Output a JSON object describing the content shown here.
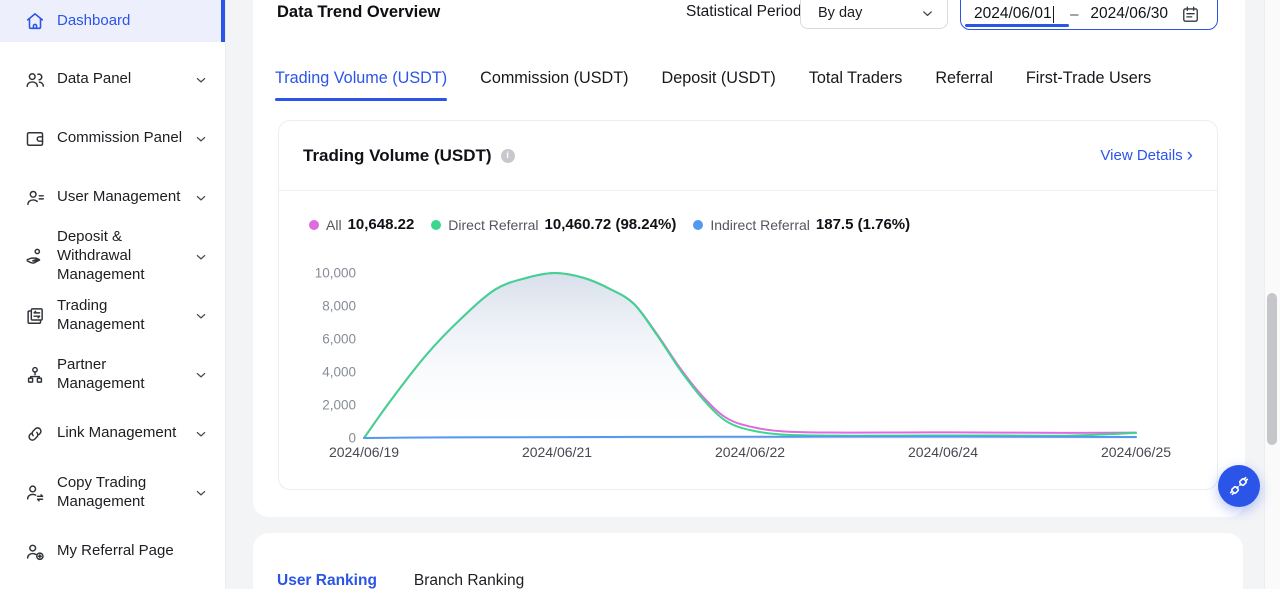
{
  "colors": {
    "accent": "#2B54E8",
    "page_bg": "#f3f4f6",
    "legend_all": "#DF6BDF",
    "legend_direct": "#3CD68E",
    "legend_indirect": "#5598F0"
  },
  "sidebar": {
    "items": [
      {
        "label": "Dashboard",
        "icon": "home-icon",
        "active": true
      },
      {
        "label": "Data Panel",
        "icon": "data-panel-icon"
      },
      {
        "label": "Commission Panel",
        "icon": "commission-panel-icon"
      },
      {
        "label": "User Management",
        "icon": "user-management-icon"
      },
      {
        "label": "Deposit & Withdrawal Management",
        "icon": "deposit-withdrawal-icon"
      },
      {
        "label": "Trading Management",
        "icon": "trading-management-icon"
      },
      {
        "label": "Partner Management",
        "icon": "partner-management-icon"
      },
      {
        "label": "Link Management",
        "icon": "link-icon"
      },
      {
        "label": "Copy Trading Management",
        "icon": "copy-trading-icon"
      },
      {
        "label": "My Referral Page",
        "icon": "referral-page-icon"
      }
    ]
  },
  "header": {
    "title": "Data Trend Overview",
    "statistical_period_label": "Statistical Period",
    "period_select_value": "By day",
    "period_select_icon": "chevron-down-icon",
    "date_start": "2024/06/01",
    "date_separator": "–",
    "date_end": "2024/06/30",
    "calendar_icon": "calendar-icon"
  },
  "tabs": [
    {
      "label": "Trading Volume (USDT)",
      "active": true
    },
    {
      "label": "Commission (USDT)",
      "active": false
    },
    {
      "label": "Deposit (USDT)",
      "active": false
    },
    {
      "label": "Total Traders",
      "active": false
    },
    {
      "label": "Referral",
      "active": false
    },
    {
      "label": "First-Trade Users",
      "active": false
    }
  ],
  "chart_card": {
    "title": "Trading Volume (USDT)",
    "info_icon": "info-icon",
    "info_glyph": "i",
    "view_details_label": "View Details",
    "view_details_arrow": "›"
  },
  "legend": [
    {
      "label": "All",
      "value": "10,648.22",
      "color": "#DF6BDF"
    },
    {
      "label": "Direct Referral",
      "value": "10,460.72 (98.24%)",
      "color": "#3CD68E"
    },
    {
      "label": "Indirect Referral",
      "value": "187.5 (1.76%)",
      "color": "#5598F0"
    }
  ],
  "chart_data": {
    "type": "area",
    "title": "Trading Volume (USDT)",
    "x_ticks": [
      "2024/06/19",
      "2024/06/21",
      "2024/06/22",
      "2024/06/24",
      "2024/06/25"
    ],
    "y_tick_values": [
      0,
      2000,
      4000,
      6000,
      8000,
      10000
    ],
    "y_tick_labels": [
      "0",
      "2,000",
      "4,000",
      "6,000",
      "8,000",
      "10,000"
    ],
    "y_max": 10000,
    "grid": false,
    "legend_position": "top",
    "series": [
      {
        "name": "All",
        "color": "#DF6BDF",
        "total": "10,648.22",
        "points": [
          [
            0,
            0
          ],
          [
            0.035,
            2300
          ],
          [
            0.08,
            5000
          ],
          [
            0.125,
            7200
          ],
          [
            0.17,
            9000
          ],
          [
            0.21,
            9700
          ],
          [
            0.247,
            10000
          ],
          [
            0.285,
            9700
          ],
          [
            0.32,
            9000
          ],
          [
            0.35,
            8120
          ],
          [
            0.38,
            6260
          ],
          [
            0.41,
            4200
          ],
          [
            0.44,
            2450
          ],
          [
            0.47,
            1200
          ],
          [
            0.505,
            640
          ],
          [
            0.55,
            380
          ],
          [
            0.63,
            330
          ],
          [
            0.73,
            340
          ],
          [
            0.83,
            330
          ],
          [
            0.91,
            310
          ],
          [
            0.965,
            320
          ],
          [
            1,
            330
          ]
        ]
      },
      {
        "name": "Direct Referral",
        "color": "#3CD68E",
        "fill": true,
        "total": "10,460.72 (98.24%)",
        "points": [
          [
            0,
            0
          ],
          [
            0.035,
            2300
          ],
          [
            0.08,
            5000
          ],
          [
            0.125,
            7200
          ],
          [
            0.17,
            9000
          ],
          [
            0.21,
            9700
          ],
          [
            0.247,
            10000
          ],
          [
            0.285,
            9700
          ],
          [
            0.32,
            9000
          ],
          [
            0.35,
            8100
          ],
          [
            0.38,
            6200
          ],
          [
            0.41,
            4100
          ],
          [
            0.44,
            2300
          ],
          [
            0.47,
            1000
          ],
          [
            0.505,
            430
          ],
          [
            0.55,
            190
          ],
          [
            0.63,
            140
          ],
          [
            0.73,
            150
          ],
          [
            0.83,
            150
          ],
          [
            0.91,
            140
          ],
          [
            0.965,
            230
          ],
          [
            1,
            310
          ]
        ]
      },
      {
        "name": "Indirect Referral",
        "color": "#5598F0",
        "total": "187.5 (1.76%)",
        "points": [
          [
            0,
            0
          ],
          [
            0.08,
            30
          ],
          [
            0.16,
            45
          ],
          [
            0.25,
            55
          ],
          [
            0.35,
            65
          ],
          [
            0.45,
            75
          ],
          [
            0.55,
            80
          ],
          [
            0.65,
            85
          ],
          [
            0.75,
            85
          ],
          [
            0.85,
            75
          ],
          [
            0.93,
            65
          ],
          [
            1,
            60
          ]
        ]
      }
    ]
  },
  "bottom_section": {
    "tabs": [
      {
        "label": "User Ranking",
        "active": true
      },
      {
        "label": "Branch Ranking",
        "active": false
      }
    ]
  },
  "fab": {
    "icon": "plug-support-icon"
  }
}
